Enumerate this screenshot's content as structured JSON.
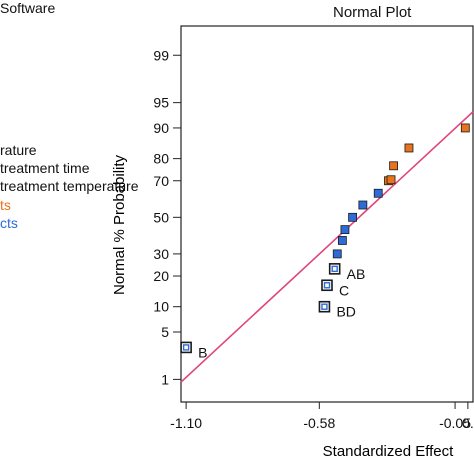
{
  "left_panel": {
    "top_text": "Software",
    "lines": [
      {
        "text": "rature",
        "color": "#111111"
      },
      {
        "text": "treatment time",
        "color": "#111111"
      },
      {
        "text": "treatment temperature",
        "color": "#111111"
      },
      {
        "text": "ts",
        "color": "#e8731c"
      },
      {
        "text": "cts",
        "color": "#2d6bd6"
      }
    ]
  },
  "chart_data": {
    "type": "scatter",
    "title": "Normal Plot",
    "xlabel": "Standardized Effect",
    "ylabel": "Normal % Probability",
    "xlim": [
      -1.12,
      0.02
    ],
    "x_ticks": [
      -1.1,
      -0.58,
      -0.05,
      0.0
    ],
    "x_tick_labels": [
      "-1.10",
      "-0.58",
      "-0.05",
      "0."
    ],
    "y_scale": "normal-probability",
    "ylim": [
      0.4,
      99.7
    ],
    "y_ticks": [
      1,
      5,
      10,
      20,
      30,
      50,
      70,
      80,
      90,
      95,
      99
    ],
    "grid": false,
    "reference_line": {
      "color": "#e0457f",
      "from": [
        -1.12,
        0.9
      ],
      "to": [
        0.02,
        93.5
      ]
    },
    "marker_colors": {
      "blue": "#2d6bd6",
      "orange": "#e8731c",
      "edge": "#1a1a1a"
    },
    "series": [
      {
        "color": "blue",
        "hollow": true,
        "points": [
          {
            "x": -1.1,
            "y": 3.1,
            "label": "B"
          },
          {
            "x": -0.56,
            "y": 10.0,
            "label": "BD"
          },
          {
            "x": -0.55,
            "y": 16.5,
            "label": "C"
          },
          {
            "x": -0.52,
            "y": 23.0,
            "label": "AB"
          }
        ]
      },
      {
        "color": "blue",
        "hollow": false,
        "points": [
          {
            "x": -0.51,
            "y": 30.0
          },
          {
            "x": -0.49,
            "y": 37.0
          },
          {
            "x": -0.48,
            "y": 43.0
          },
          {
            "x": -0.45,
            "y": 50.0
          },
          {
            "x": -0.41,
            "y": 57.0
          },
          {
            "x": -0.35,
            "y": 63.5
          }
        ]
      },
      {
        "color": "orange",
        "hollow": false,
        "points": [
          {
            "x": -0.31,
            "y": 70.0
          },
          {
            "x": -0.3,
            "y": 70.5
          },
          {
            "x": -0.29,
            "y": 77.0
          },
          {
            "x": -0.23,
            "y": 84.0
          },
          {
            "x": -0.01,
            "y": 90.0
          }
        ]
      }
    ]
  }
}
